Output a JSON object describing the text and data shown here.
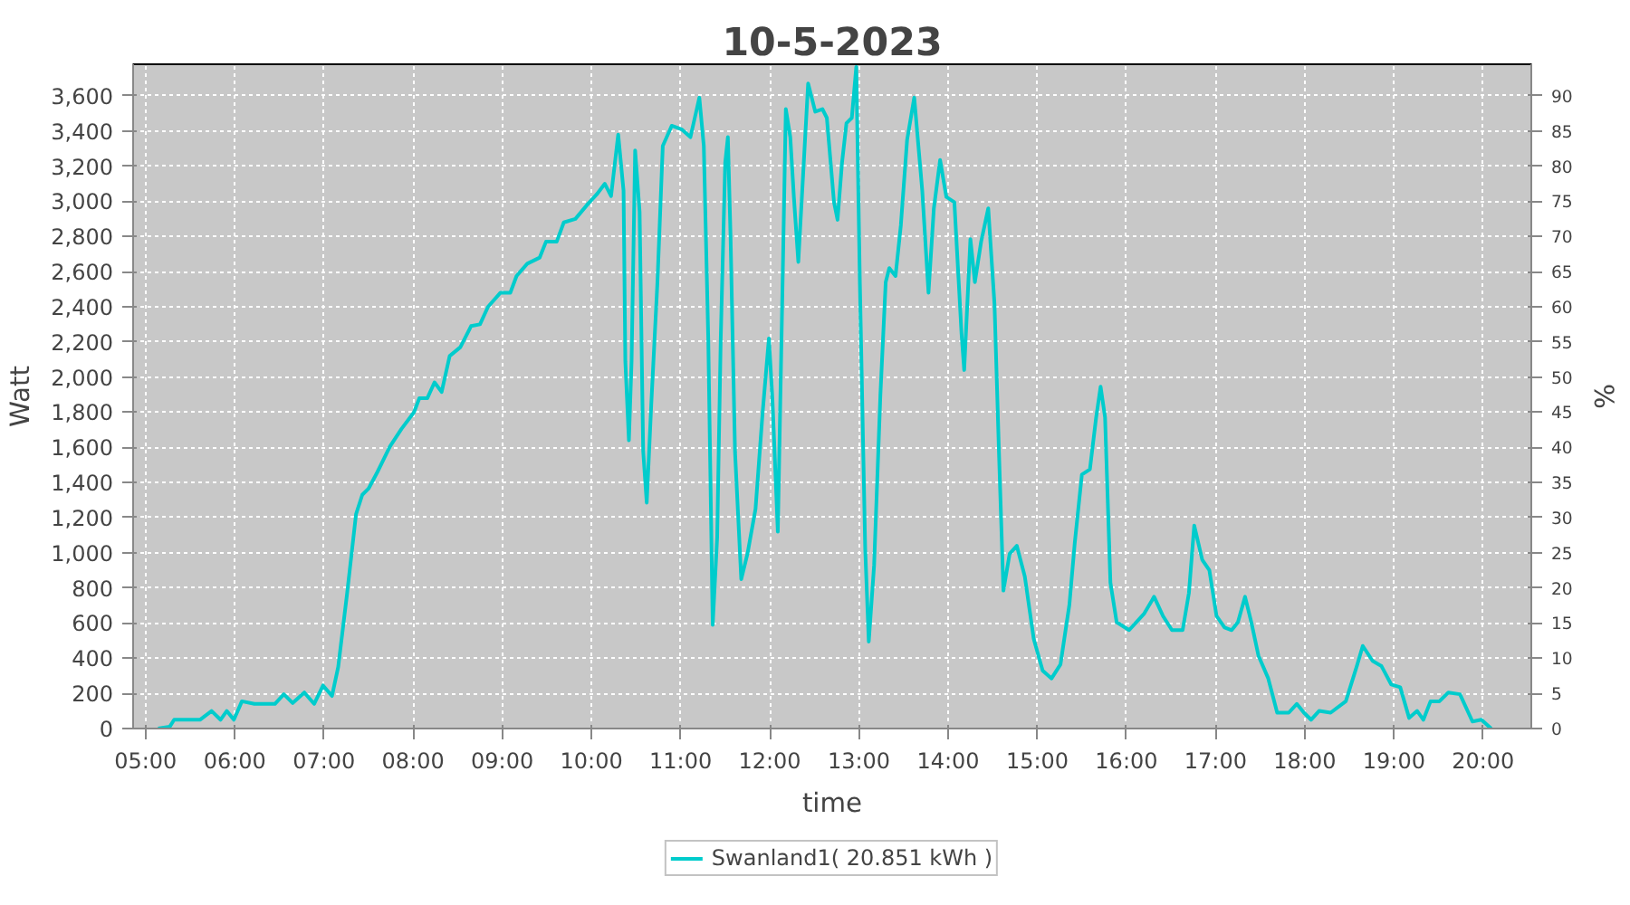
{
  "chart_data": {
    "type": "line",
    "title": "10-5-2023",
    "xlabel": "time",
    "ylabel": "Watt",
    "y2label": "%",
    "xlim": [
      4.86,
      20.54
    ],
    "xticks": [
      {
        "value": 5,
        "label": "05:00"
      },
      {
        "value": 6,
        "label": "06:00"
      },
      {
        "value": 7,
        "label": "07:00"
      },
      {
        "value": 8,
        "label": "08:00"
      },
      {
        "value": 9,
        "label": "09:00"
      },
      {
        "value": 10,
        "label": "10:00"
      },
      {
        "value": 11,
        "label": "11:00"
      },
      {
        "value": 12,
        "label": "12:00"
      },
      {
        "value": 13,
        "label": "13:00"
      },
      {
        "value": 14,
        "label": "14:00"
      },
      {
        "value": 15,
        "label": "15:00"
      },
      {
        "value": 16,
        "label": "16:00"
      },
      {
        "value": 17,
        "label": "17:00"
      },
      {
        "value": 18,
        "label": "18:00"
      },
      {
        "value": 19,
        "label": "19:00"
      },
      {
        "value": 20,
        "label": "20:00"
      }
    ],
    "ylim": [
      0,
      3780
    ],
    "yticks": [
      0,
      200,
      400,
      600,
      800,
      {
        "value": 1000,
        "label": "1,000"
      },
      {
        "value": 1200,
        "label": "1,200"
      },
      {
        "value": 1400,
        "label": "1,400"
      },
      {
        "value": 1600,
        "label": "1,600"
      },
      {
        "value": 1800,
        "label": "1,800"
      },
      {
        "value": 2000,
        "label": "2,000"
      },
      {
        "value": 2200,
        "label": "2,200"
      },
      {
        "value": 2400,
        "label": "2,400"
      },
      {
        "value": 2600,
        "label": "2,600"
      },
      {
        "value": 2800,
        "label": "2,800"
      },
      {
        "value": 3000,
        "label": "3,000"
      },
      {
        "value": 3200,
        "label": "3,200"
      },
      {
        "value": 3400,
        "label": "3,400"
      },
      {
        "value": 3600,
        "label": "3,600"
      }
    ],
    "y2lim": [
      0,
      94.5
    ],
    "y2ticks": [
      0,
      5,
      10,
      15,
      20,
      25,
      30,
      35,
      40,
      45,
      50,
      55,
      60,
      65,
      70,
      75,
      80,
      85,
      90
    ],
    "grid": true,
    "legend": "bottom",
    "marker": "none",
    "line_style": "solid",
    "series": [
      {
        "name": "Swanland1( 20.851 kWh )",
        "color": "#00cccc",
        "x": [
          5.14,
          5.27,
          5.32,
          5.61,
          5.74,
          5.84,
          5.91,
          5.99,
          6.08,
          6.22,
          6.45,
          6.55,
          6.65,
          6.78,
          6.89,
          6.99,
          7.09,
          7.16,
          7.26,
          7.36,
          7.43,
          7.5,
          7.6,
          7.74,
          7.87,
          8.01,
          8.07,
          8.16,
          8.24,
          8.32,
          8.41,
          8.53,
          8.65,
          8.75,
          8.84,
          8.98,
          9.09,
          9.16,
          9.28,
          9.42,
          9.49,
          9.61,
          9.69,
          9.82,
          9.96,
          10.06,
          10.15,
          10.22,
          10.3,
          10.36,
          10.38,
          10.42,
          10.45,
          10.49,
          10.54,
          10.58,
          10.62,
          10.67,
          10.74,
          10.8,
          10.9,
          11.01,
          11.11,
          11.21,
          11.26,
          11.31,
          11.36,
          11.41,
          11.45,
          11.5,
          11.53,
          11.56,
          11.61,
          11.68,
          11.75,
          11.84,
          11.92,
          11.99,
          12.03,
          12.09,
          12.14,
          12.18,
          12.23,
          12.27,
          12.32,
          12.36,
          12.43,
          12.51,
          12.59,
          12.64,
          12.72,
          12.76,
          12.81,
          12.86,
          12.92,
          12.97,
          13.01,
          13.07,
          13.11,
          13.17,
          13.24,
          13.3,
          13.34,
          13.41,
          13.47,
          13.54,
          13.62,
          13.71,
          13.78,
          13.84,
          13.91,
          13.98,
          14.07,
          14.15,
          14.18,
          14.25,
          14.3,
          14.37,
          14.45,
          14.52,
          14.57,
          14.62,
          14.69,
          14.77,
          14.86,
          14.96,
          15.06,
          15.16,
          15.26,
          15.36,
          15.42,
          15.5,
          15.59,
          15.66,
          15.71,
          15.76,
          15.82,
          15.89,
          16.03,
          16.2,
          16.31,
          16.41,
          16.51,
          16.63,
          16.7,
          16.76,
          16.85,
          16.93,
          17.01,
          17.1,
          17.18,
          17.25,
          17.33,
          17.4,
          17.48,
          17.59,
          17.69,
          17.82,
          17.91,
          17.99,
          18.07,
          18.16,
          18.29,
          18.46,
          18.58,
          18.65,
          18.76,
          18.86,
          18.97,
          19.07,
          19.17,
          19.26,
          19.33,
          19.41,
          19.51,
          19.61,
          19.74,
          19.88,
          19.98,
          20.09
        ],
        "values": [
          0,
          10,
          50,
          50,
          100,
          50,
          100,
          50,
          155,
          140,
          140,
          195,
          145,
          205,
          140,
          245,
          185,
          350,
          770,
          1220,
          1330,
          1365,
          1460,
          1605,
          1705,
          1800,
          1880,
          1880,
          1970,
          1915,
          2120,
          2170,
          2290,
          2300,
          2400,
          2480,
          2480,
          2575,
          2645,
          2680,
          2770,
          2770,
          2880,
          2900,
          2985,
          3040,
          3100,
          3030,
          3380,
          3060,
          2090,
          1640,
          2090,
          3290,
          2940,
          1580,
          1285,
          1835,
          2540,
          3315,
          3430,
          3410,
          3365,
          3590,
          3315,
          2220,
          590,
          1090,
          2220,
          3220,
          3365,
          2800,
          1575,
          850,
          995,
          1250,
          1800,
          2220,
          1870,
          1120,
          2445,
          3525,
          3365,
          3025,
          2655,
          3025,
          3670,
          3510,
          3525,
          3475,
          2995,
          2895,
          3220,
          3445,
          3475,
          3765,
          2540,
          1025,
          495,
          930,
          1895,
          2540,
          2620,
          2575,
          2865,
          3350,
          3590,
          3060,
          2480,
          2960,
          3235,
          3025,
          2995,
          2250,
          2040,
          2785,
          2540,
          2770,
          2960,
          2415,
          1575,
          785,
          995,
          1040,
          865,
          510,
          330,
          285,
          365,
          705,
          1055,
          1445,
          1475,
          1770,
          1945,
          1770,
          830,
          605,
          560,
          655,
          750,
          640,
          560,
          560,
          770,
          1155,
          960,
          900,
          640,
          575,
          560,
          605,
          750,
          605,
          415,
          285,
          90,
          90,
          140,
          90,
          50,
          100,
          90,
          155,
          350,
          470,
          385,
          355,
          250,
          235,
          60,
          100,
          50,
          155,
          155,
          205,
          195,
          40,
          50,
          0
        ]
      }
    ]
  }
}
